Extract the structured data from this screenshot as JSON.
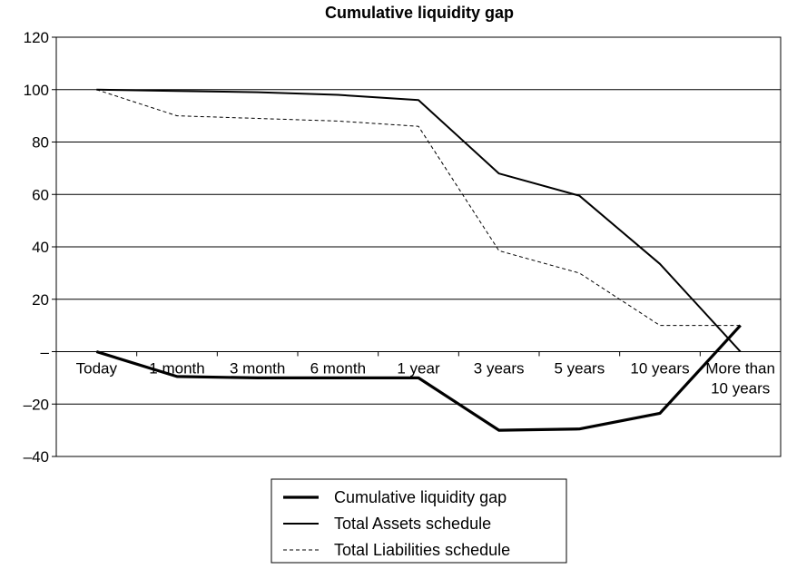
{
  "chart_data": {
    "type": "line",
    "title": "Cumulative liquidity gap",
    "xlabel": "",
    "ylabel": "",
    "categories": [
      "Today",
      "1 month",
      "3 month",
      "6 month",
      "1 year",
      "3 years",
      "5 years",
      "10 years",
      "More than\n10 years"
    ],
    "ylim": [
      -40,
      120
    ],
    "yticks": [
      120,
      100,
      80,
      60,
      40,
      20,
      0,
      -20,
      -40
    ],
    "ytick_labels": [
      "120",
      "100",
      "80",
      "60",
      "40",
      "20",
      "–",
      "–20",
      "–40"
    ],
    "grid": true,
    "legend_position": "bottom",
    "series": [
      {
        "name": "Cumulative liquidity gap",
        "values": [
          0,
          -9.5,
          -10,
          -10,
          -10,
          -30,
          -29.5,
          -23.5,
          10
        ],
        "style": "thick-solid",
        "color": "#000000"
      },
      {
        "name": "Total Assets schedule",
        "values": [
          100,
          99.5,
          99,
          98,
          96,
          68,
          59.5,
          33.5,
          0
        ],
        "style": "solid",
        "color": "#000000"
      },
      {
        "name": "Total Liabilities schedule",
        "values": [
          100,
          90,
          89,
          88,
          86,
          38.5,
          30,
          10,
          10
        ],
        "style": "dashed",
        "color": "#000000"
      }
    ]
  }
}
